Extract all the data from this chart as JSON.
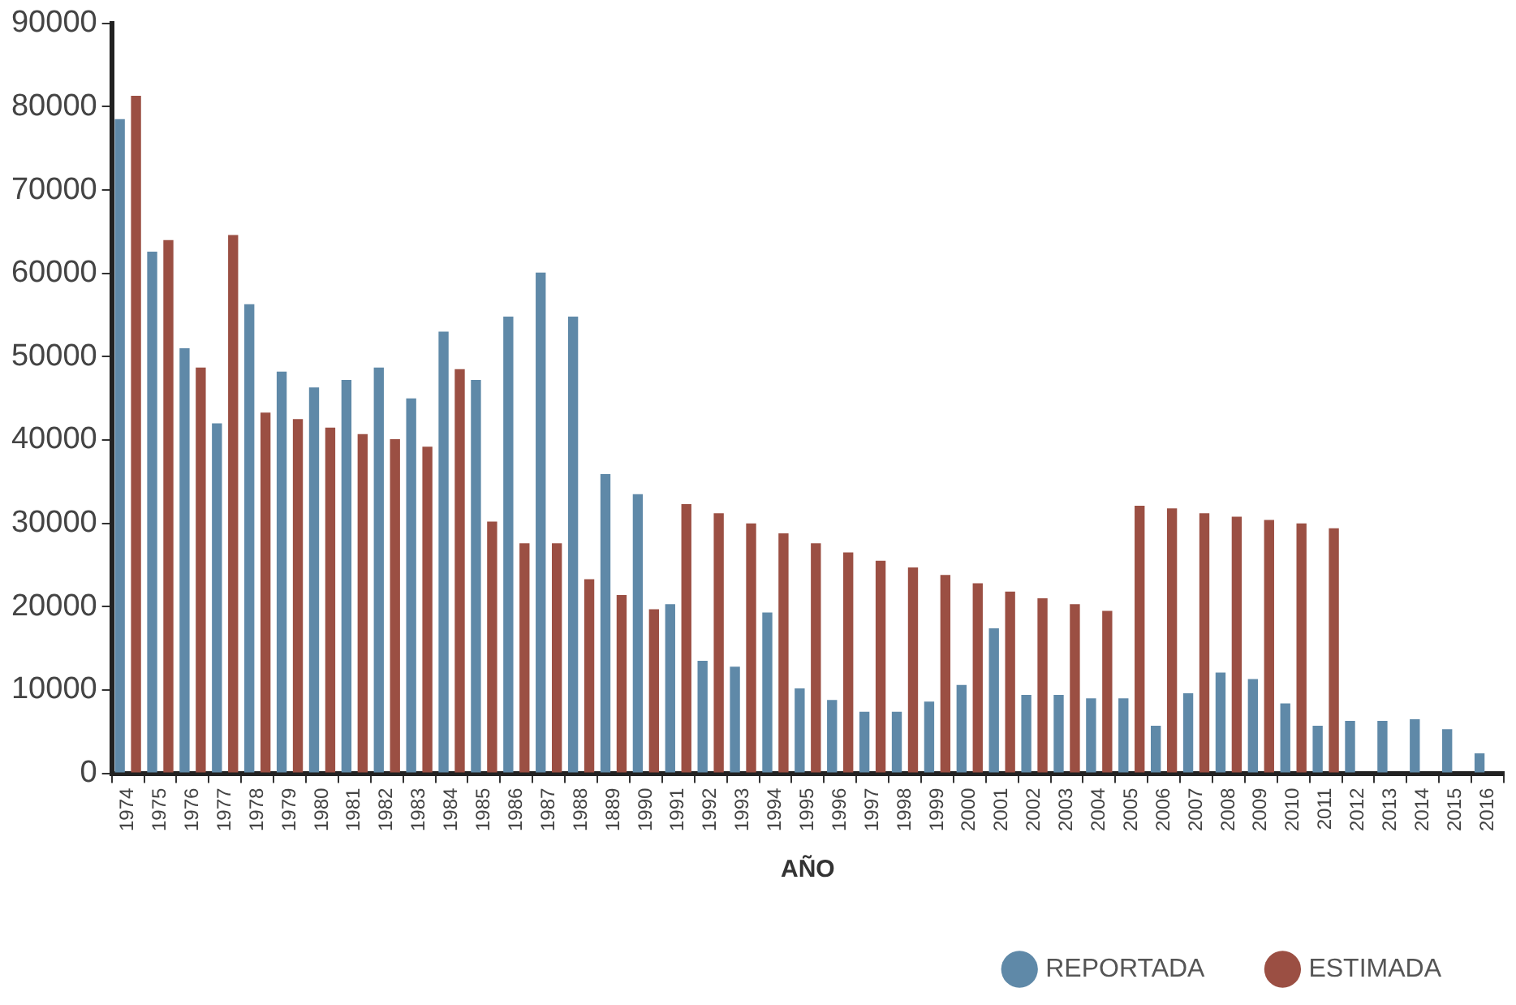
{
  "chart_data": {
    "type": "bar",
    "xlabel": "AÑO",
    "categories": [
      "1974",
      "1975",
      "1976",
      "1977",
      "1978",
      "1979",
      "1980",
      "1981",
      "1982",
      "1983",
      "1984",
      "1985",
      "1986",
      "1987",
      "1988",
      "1889",
      "1990",
      "1991",
      "1992",
      "1993",
      "1994",
      "1995",
      "1996",
      "1997",
      "1998",
      "1999",
      "2000",
      "2001",
      "2002",
      "2003",
      "2004",
      "2005",
      "2006",
      "2007",
      "2008",
      "2009",
      "2010",
      "2011",
      "2012",
      "2013",
      "2014",
      "2015",
      "2016"
    ],
    "series": [
      {
        "name": "REPORTADA",
        "color": "#5f89a8",
        "values": [
          78500,
          62600,
          51000,
          42000,
          56300,
          48200,
          46300,
          47200,
          48700,
          45000,
          53000,
          47200,
          54800,
          60100,
          54800,
          35900,
          33500,
          20300,
          13500,
          12800,
          19300,
          10200,
          8800,
          7400,
          7400,
          8600,
          10600,
          17400,
          9400,
          9400,
          9000,
          9000,
          5700,
          9600,
          12100,
          11300,
          8400,
          5700,
          6300,
          6300,
          6500,
          5300,
          2400
        ]
      },
      {
        "name": "ESTIMADA",
        "color": "#9b4f43",
        "values": [
          81300,
          64000,
          48700,
          64600,
          43300,
          42500,
          41500,
          40700,
          40100,
          39200,
          48500,
          30200,
          27600,
          27600,
          23300,
          21400,
          19700,
          32300,
          31200,
          30000,
          28800,
          27600,
          26500,
          25500,
          24700,
          23800,
          22800,
          21800,
          21000,
          20300,
          19500,
          32100,
          31800,
          31200,
          30800,
          30400,
          30000,
          29400,
          null,
          null,
          null,
          null,
          null
        ]
      }
    ],
    "ylim": [
      0,
      90000
    ],
    "yticks": [
      0,
      10000,
      20000,
      30000,
      40000,
      50000,
      60000,
      70000,
      80000,
      90000
    ],
    "grid": false,
    "legend": "bottom right"
  }
}
